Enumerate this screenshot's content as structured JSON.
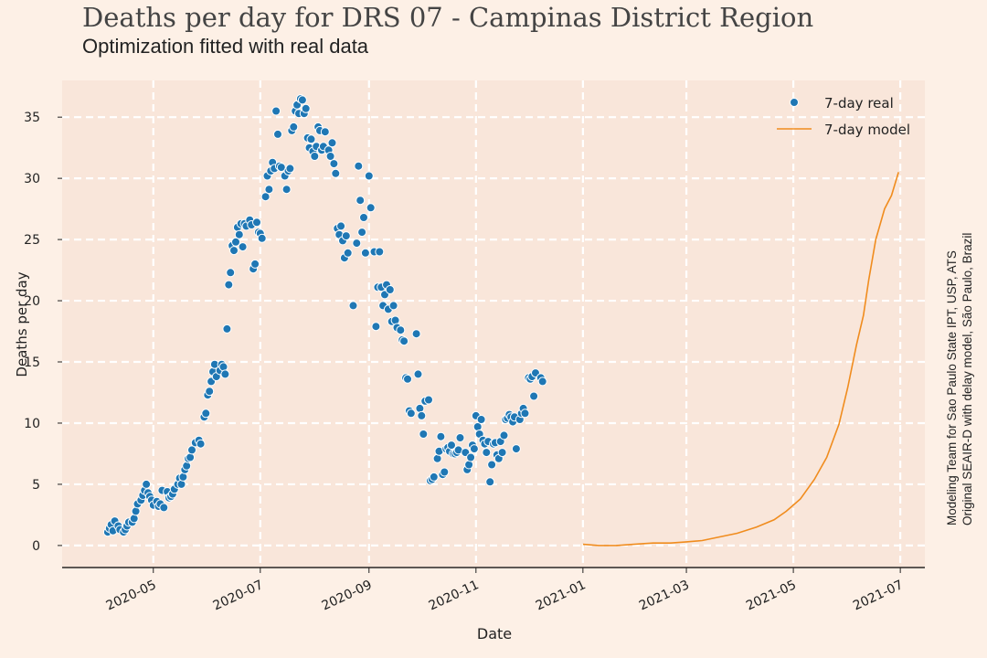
{
  "title": "Deaths per day for DRS 07 - Campinas District Region",
  "subtitle": "Optimization fitted with real data",
  "side_note": {
    "line1": "Modeling Team for Sao Paulo State IPT, USP, ATS",
    "line2": "Original SEAIR-D with delay model, São Paulo, Brazil"
  },
  "colors": {
    "background": "#fdf0e6",
    "plot_area": "#f9e6da",
    "grid": "#ffffff",
    "real": "#1f77b4",
    "model": "#f08c1e"
  },
  "chart_data": {
    "type": "scatter",
    "xlabel": "Date",
    "ylabel": "Deaths per day",
    "xlim": [
      "2020-03-10",
      "2021-07-15"
    ],
    "ylim": [
      -1.8,
      38
    ],
    "grid": true,
    "legend_position": "top-right",
    "x_ticks": [
      {
        "date": "2020-05-01",
        "label": "2020-05"
      },
      {
        "date": "2020-07-01",
        "label": "2020-07"
      },
      {
        "date": "2020-09-01",
        "label": "2020-09"
      },
      {
        "date": "2020-11-01",
        "label": "2020-11"
      },
      {
        "date": "2021-01-01",
        "label": "2021-01"
      },
      {
        "date": "2021-03-01",
        "label": "2021-03"
      },
      {
        "date": "2021-05-01",
        "label": "2021-05"
      },
      {
        "date": "2021-07-01",
        "label": "2021-07"
      }
    ],
    "y_ticks": [
      0,
      5,
      10,
      15,
      20,
      25,
      30,
      35
    ],
    "series": [
      {
        "name": "7-day real",
        "kind": "scatter",
        "points": [
          [
            "2020-04-05",
            1.1
          ],
          [
            "2020-04-06",
            1.4
          ],
          [
            "2020-04-07",
            1.7
          ],
          [
            "2020-04-08",
            1.2
          ],
          [
            "2020-04-09",
            2.0
          ],
          [
            "2020-04-11",
            1.6
          ],
          [
            "2020-04-12",
            1.3
          ],
          [
            "2020-04-14",
            1.1
          ],
          [
            "2020-04-15",
            1.3
          ],
          [
            "2020-04-16",
            1.6
          ],
          [
            "2020-04-17",
            1.9
          ],
          [
            "2020-04-19",
            1.9
          ],
          [
            "2020-04-20",
            2.2
          ],
          [
            "2020-04-21",
            2.8
          ],
          [
            "2020-04-22",
            3.4
          ],
          [
            "2020-04-24",
            3.7
          ],
          [
            "2020-04-25",
            4.1
          ],
          [
            "2020-04-26",
            4.5
          ],
          [
            "2020-04-27",
            5.0
          ],
          [
            "2020-04-28",
            4.3
          ],
          [
            "2020-04-29",
            4.0
          ],
          [
            "2020-04-30",
            3.7
          ],
          [
            "2020-05-01",
            3.3
          ],
          [
            "2020-05-03",
            3.6
          ],
          [
            "2020-05-04",
            3.2
          ],
          [
            "2020-05-05",
            3.4
          ],
          [
            "2020-05-06",
            4.5
          ],
          [
            "2020-05-07",
            3.1
          ],
          [
            "2020-05-09",
            4.4
          ],
          [
            "2020-05-10",
            3.9
          ],
          [
            "2020-05-11",
            4.0
          ],
          [
            "2020-05-12",
            4.2
          ],
          [
            "2020-05-13",
            4.6
          ],
          [
            "2020-05-15",
            5.0
          ],
          [
            "2020-05-16",
            5.5
          ],
          [
            "2020-05-17",
            5.0
          ],
          [
            "2020-05-18",
            5.6
          ],
          [
            "2020-05-19",
            6.2
          ],
          [
            "2020-05-20",
            6.5
          ],
          [
            "2020-05-21",
            7.1
          ],
          [
            "2020-05-22",
            7.2
          ],
          [
            "2020-05-23",
            7.8
          ],
          [
            "2020-05-25",
            8.4
          ],
          [
            "2020-05-27",
            8.6
          ],
          [
            "2020-05-28",
            8.3
          ],
          [
            "2020-05-30",
            10.5
          ],
          [
            "2020-05-31",
            10.8
          ],
          [
            "2020-06-01",
            12.3
          ],
          [
            "2020-06-02",
            12.6
          ],
          [
            "2020-06-03",
            13.4
          ],
          [
            "2020-06-04",
            14.2
          ],
          [
            "2020-06-05",
            14.8
          ],
          [
            "2020-06-06",
            13.8
          ],
          [
            "2020-06-08",
            14.3
          ],
          [
            "2020-06-09",
            14.8
          ],
          [
            "2020-06-10",
            14.6
          ],
          [
            "2020-06-11",
            14.0
          ],
          [
            "2020-06-12",
            17.7
          ],
          [
            "2020-06-13",
            21.3
          ],
          [
            "2020-06-14",
            22.3
          ],
          [
            "2020-06-15",
            24.5
          ],
          [
            "2020-06-16",
            24.1
          ],
          [
            "2020-06-17",
            24.8
          ],
          [
            "2020-06-18",
            26.0
          ],
          [
            "2020-06-19",
            25.4
          ],
          [
            "2020-06-20",
            26.3
          ],
          [
            "2020-06-21",
            24.4
          ],
          [
            "2020-06-22",
            26.3
          ],
          [
            "2020-06-23",
            26.1
          ],
          [
            "2020-06-25",
            26.6
          ],
          [
            "2020-06-26",
            26.2
          ],
          [
            "2020-06-27",
            22.6
          ],
          [
            "2020-06-28",
            23.0
          ],
          [
            "2020-06-29",
            26.4
          ],
          [
            "2020-06-30",
            25.6
          ],
          [
            "2020-07-01",
            25.5
          ],
          [
            "2020-07-02",
            25.1
          ],
          [
            "2020-07-04",
            28.5
          ],
          [
            "2020-07-05",
            30.2
          ],
          [
            "2020-07-06",
            29.1
          ],
          [
            "2020-07-07",
            30.6
          ],
          [
            "2020-07-08",
            31.3
          ],
          [
            "2020-07-09",
            30.8
          ],
          [
            "2020-07-10",
            35.5
          ],
          [
            "2020-07-11",
            33.6
          ],
          [
            "2020-07-12",
            31.0
          ],
          [
            "2020-07-13",
            30.9
          ],
          [
            "2020-07-15",
            30.2
          ],
          [
            "2020-07-16",
            29.1
          ],
          [
            "2020-07-17",
            30.6
          ],
          [
            "2020-07-18",
            30.8
          ],
          [
            "2020-07-19",
            33.9
          ],
          [
            "2020-07-20",
            34.2
          ],
          [
            "2020-07-21",
            35.5
          ],
          [
            "2020-07-22",
            36.0
          ],
          [
            "2020-07-23",
            35.3
          ],
          [
            "2020-07-24",
            36.5
          ],
          [
            "2020-07-25",
            36.4
          ],
          [
            "2020-07-26",
            35.3
          ],
          [
            "2020-07-27",
            35.7
          ],
          [
            "2020-07-28",
            33.3
          ],
          [
            "2020-07-29",
            32.5
          ],
          [
            "2020-07-30",
            33.2
          ],
          [
            "2020-07-31",
            32.2
          ],
          [
            "2020-08-01",
            31.8
          ],
          [
            "2020-08-02",
            32.6
          ],
          [
            "2020-08-03",
            34.2
          ],
          [
            "2020-08-04",
            33.9
          ],
          [
            "2020-08-05",
            32.3
          ],
          [
            "2020-08-06",
            32.6
          ],
          [
            "2020-08-07",
            33.8
          ],
          [
            "2020-08-09",
            32.3
          ],
          [
            "2020-08-10",
            31.8
          ],
          [
            "2020-08-11",
            32.9
          ],
          [
            "2020-08-12",
            31.2
          ],
          [
            "2020-08-13",
            30.4
          ],
          [
            "2020-08-14",
            25.9
          ],
          [
            "2020-08-15",
            25.4
          ],
          [
            "2020-08-16",
            26.1
          ],
          [
            "2020-08-17",
            24.9
          ],
          [
            "2020-08-18",
            23.5
          ],
          [
            "2020-08-19",
            25.3
          ],
          [
            "2020-08-20",
            23.9
          ],
          [
            "2020-08-23",
            19.6
          ],
          [
            "2020-08-25",
            24.7
          ],
          [
            "2020-08-26",
            31.0
          ],
          [
            "2020-08-27",
            28.2
          ],
          [
            "2020-08-28",
            25.6
          ],
          [
            "2020-08-29",
            26.8
          ],
          [
            "2020-08-30",
            23.9
          ],
          [
            "2020-09-01",
            30.2
          ],
          [
            "2020-09-02",
            27.6
          ],
          [
            "2020-09-04",
            24.0
          ],
          [
            "2020-09-05",
            17.9
          ],
          [
            "2020-09-06",
            21.1
          ],
          [
            "2020-09-07",
            24.0
          ],
          [
            "2020-09-08",
            21.1
          ],
          [
            "2020-09-09",
            19.6
          ],
          [
            "2020-09-10",
            20.5
          ],
          [
            "2020-09-11",
            21.3
          ],
          [
            "2020-09-12",
            19.3
          ],
          [
            "2020-09-13",
            20.9
          ],
          [
            "2020-09-14",
            18.3
          ],
          [
            "2020-09-15",
            19.6
          ],
          [
            "2020-09-16",
            18.4
          ],
          [
            "2020-09-17",
            17.8
          ],
          [
            "2020-09-19",
            17.6
          ],
          [
            "2020-09-20",
            16.8
          ],
          [
            "2020-09-21",
            16.7
          ],
          [
            "2020-09-22",
            13.7
          ],
          [
            "2020-09-23",
            13.6
          ],
          [
            "2020-09-24",
            11.0
          ],
          [
            "2020-09-25",
            10.8
          ],
          [
            "2020-09-28",
            17.3
          ],
          [
            "2020-09-29",
            14.0
          ],
          [
            "2020-09-30",
            11.2
          ],
          [
            "2020-10-01",
            10.6
          ],
          [
            "2020-10-02",
            9.1
          ],
          [
            "2020-10-03",
            11.8
          ],
          [
            "2020-10-05",
            11.9
          ],
          [
            "2020-10-06",
            5.3
          ],
          [
            "2020-10-07",
            5.4
          ],
          [
            "2020-10-08",
            5.6
          ],
          [
            "2020-10-10",
            7.1
          ],
          [
            "2020-10-11",
            7.7
          ],
          [
            "2020-10-12",
            8.9
          ],
          [
            "2020-10-13",
            5.8
          ],
          [
            "2020-10-14",
            6.0
          ],
          [
            "2020-10-15",
            7.9
          ],
          [
            "2020-10-16",
            8.0
          ],
          [
            "2020-10-17",
            7.7
          ],
          [
            "2020-10-18",
            8.2
          ],
          [
            "2020-10-19",
            7.5
          ],
          [
            "2020-10-20",
            7.5
          ],
          [
            "2020-10-21",
            7.6
          ],
          [
            "2020-10-22",
            7.8
          ],
          [
            "2020-10-23",
            8.8
          ],
          [
            "2020-10-26",
            7.6
          ],
          [
            "2020-10-27",
            6.2
          ],
          [
            "2020-10-28",
            6.6
          ],
          [
            "2020-10-29",
            7.2
          ],
          [
            "2020-10-30",
            8.2
          ],
          [
            "2020-10-31",
            7.9
          ],
          [
            "2020-11-01",
            10.6
          ],
          [
            "2020-11-02",
            9.7
          ],
          [
            "2020-11-03",
            9.1
          ],
          [
            "2020-11-04",
            10.3
          ],
          [
            "2020-11-05",
            8.6
          ],
          [
            "2020-11-06",
            8.3
          ],
          [
            "2020-11-07",
            7.6
          ],
          [
            "2020-11-08",
            8.5
          ],
          [
            "2020-11-09",
            5.2
          ],
          [
            "2020-11-10",
            6.6
          ],
          [
            "2020-11-11",
            8.3
          ],
          [
            "2020-11-12",
            8.4
          ],
          [
            "2020-11-13",
            7.4
          ],
          [
            "2020-11-14",
            7.1
          ],
          [
            "2020-11-15",
            8.5
          ],
          [
            "2020-11-16",
            7.6
          ],
          [
            "2020-11-17",
            9.0
          ],
          [
            "2020-11-18",
            10.3
          ],
          [
            "2020-11-19",
            10.4
          ],
          [
            "2020-11-20",
            10.7
          ],
          [
            "2020-11-21",
            10.5
          ],
          [
            "2020-11-22",
            10.1
          ],
          [
            "2020-11-23",
            10.5
          ],
          [
            "2020-11-24",
            7.9
          ],
          [
            "2020-11-26",
            10.3
          ],
          [
            "2020-11-27",
            10.8
          ],
          [
            "2020-11-28",
            11.2
          ],
          [
            "2020-11-29",
            10.8
          ],
          [
            "2020-12-01",
            13.7
          ],
          [
            "2020-12-02",
            13.6
          ],
          [
            "2020-12-03",
            13.8
          ],
          [
            "2020-12-04",
            12.2
          ],
          [
            "2020-12-05",
            14.1
          ],
          [
            "2020-12-08",
            13.7
          ],
          [
            "2020-12-09",
            13.4
          ]
        ]
      },
      {
        "name": "7-day model",
        "kind": "line",
        "points": [
          [
            "2021-01-01",
            0.1
          ],
          [
            "2021-01-10",
            0.0
          ],
          [
            "2021-01-20",
            0.0
          ],
          [
            "2021-01-30",
            0.1
          ],
          [
            "2021-02-10",
            0.2
          ],
          [
            "2021-02-20",
            0.2
          ],
          [
            "2021-03-01",
            0.3
          ],
          [
            "2021-03-10",
            0.4
          ],
          [
            "2021-03-20",
            0.7
          ],
          [
            "2021-03-30",
            1.0
          ],
          [
            "2021-04-10",
            1.5
          ],
          [
            "2021-04-20",
            2.1
          ],
          [
            "2021-04-27",
            2.8
          ],
          [
            "2021-05-05",
            3.8
          ],
          [
            "2021-05-13",
            5.4
          ],
          [
            "2021-05-20",
            7.2
          ],
          [
            "2021-05-27",
            9.9
          ],
          [
            "2021-06-01",
            12.9
          ],
          [
            "2021-06-06",
            16.4
          ],
          [
            "2021-06-10",
            18.8
          ],
          [
            "2021-06-13",
            21.7
          ],
          [
            "2021-06-17",
            25.0
          ],
          [
            "2021-06-22",
            27.5
          ],
          [
            "2021-06-26",
            28.6
          ],
          [
            "2021-06-30",
            30.5
          ]
        ]
      }
    ]
  }
}
